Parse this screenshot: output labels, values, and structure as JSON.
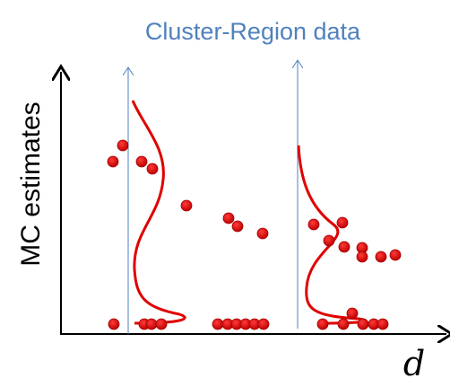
{
  "title": "Cluster-Region data",
  "y_axis_label": "MC estimates",
  "x_axis_label": "d"
}
